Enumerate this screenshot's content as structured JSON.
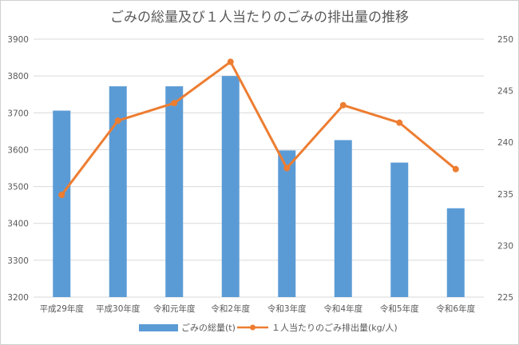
{
  "chart_data": {
    "type": "bar+line",
    "title": "ごみの総量及び１人当たりのごみの排出量の推移",
    "categories": [
      "平成29年度",
      "平成30年度",
      "令和元年度",
      "令和2年度",
      "令和3年度",
      "令和4年度",
      "令和5年度",
      "令和6年度"
    ],
    "series": [
      {
        "name": "ごみの総量(t)",
        "type": "bar",
        "axis": "left",
        "color": "#5b9bd5",
        "values": [
          3706,
          3772,
          3772,
          3800,
          3598,
          3626,
          3565,
          3441
        ]
      },
      {
        "name": "１人当たりのごみ排出量(kg/人)",
        "type": "line",
        "axis": "right",
        "color": "#ed7d31",
        "values": [
          234.9,
          242.1,
          243.8,
          247.8,
          237.5,
          243.6,
          241.9,
          237.4
        ]
      }
    ],
    "y_left": {
      "min": 3200,
      "max": 3900,
      "step": 100,
      "ticks": [
        "3200",
        "3300",
        "3400",
        "3500",
        "3600",
        "3700",
        "3800",
        "3900"
      ]
    },
    "y_right": {
      "min": 225,
      "max": 250,
      "step": 5,
      "ticks": [
        "225",
        "230",
        "235",
        "240",
        "245",
        "250"
      ]
    },
    "grid": true,
    "legend_position": "bottom"
  }
}
